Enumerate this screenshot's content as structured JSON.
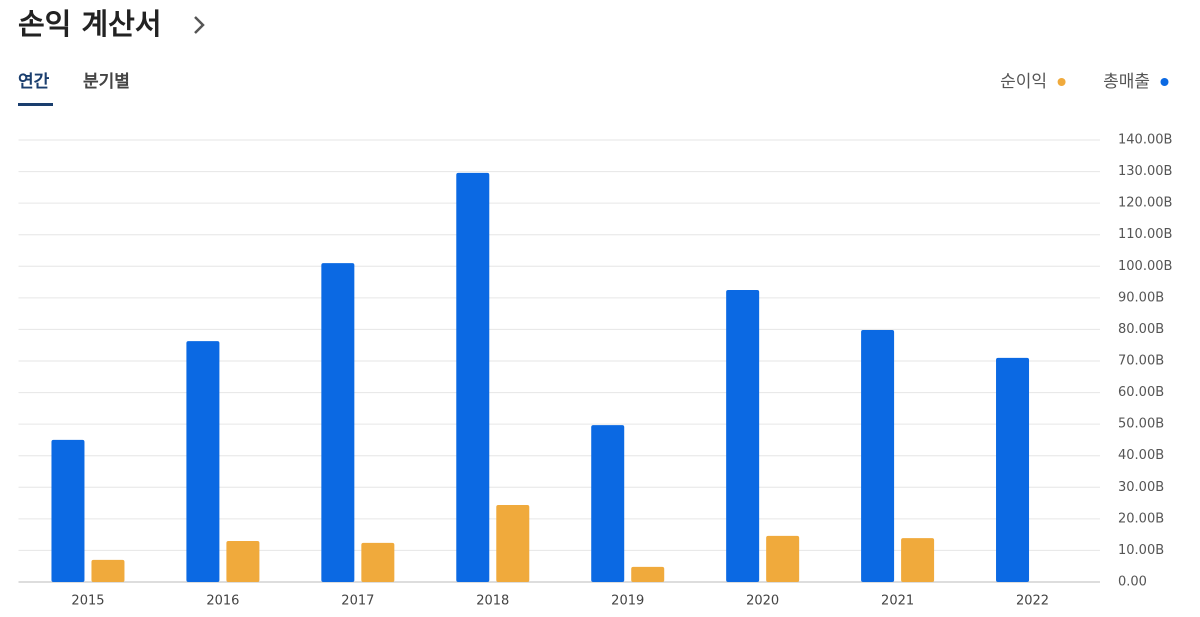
{
  "header": {
    "title": "손익 계산서",
    "tabs": [
      "연간",
      "분기별"
    ]
  },
  "chart_data": {
    "type": "bar",
    "categories": [
      "2015",
      "2016",
      "2017",
      "2018",
      "2019",
      "2020",
      "2021",
      "2022"
    ],
    "series": [
      {
        "name": "총매출",
        "color": "#0b69e3",
        "values": [
          45,
          76.3,
          101,
          129.6,
          49.7,
          92.5,
          79.8,
          71
        ]
      },
      {
        "name": "순이익",
        "color": "#f0aa3c",
        "values": [
          7,
          13,
          12.4,
          24.4,
          4.8,
          14.6,
          13.9,
          null
        ]
      }
    ],
    "ylim": [
      0,
      140
    ],
    "yticks": [
      {
        "value": 0,
        "label": "0.00"
      },
      {
        "value": 10,
        "label": "10.00B"
      },
      {
        "value": 20,
        "label": "20.00B"
      },
      {
        "value": 30,
        "label": "30.00B"
      },
      {
        "value": 40,
        "label": "40.00B"
      },
      {
        "value": 50,
        "label": "50.00B"
      },
      {
        "value": 60,
        "label": "60.00B"
      },
      {
        "value": 70,
        "label": "70.00B"
      },
      {
        "value": 80,
        "label": "80.00B"
      },
      {
        "value": 90,
        "label": "90.00B"
      },
      {
        "value": 100,
        "label": "100.00B"
      },
      {
        "value": 110,
        "label": "110.00B"
      },
      {
        "value": 120,
        "label": "120.00B"
      },
      {
        "value": 130,
        "label": "130.00B"
      },
      {
        "value": 140,
        "label": "140.00B"
      }
    ],
    "grid": true
  }
}
